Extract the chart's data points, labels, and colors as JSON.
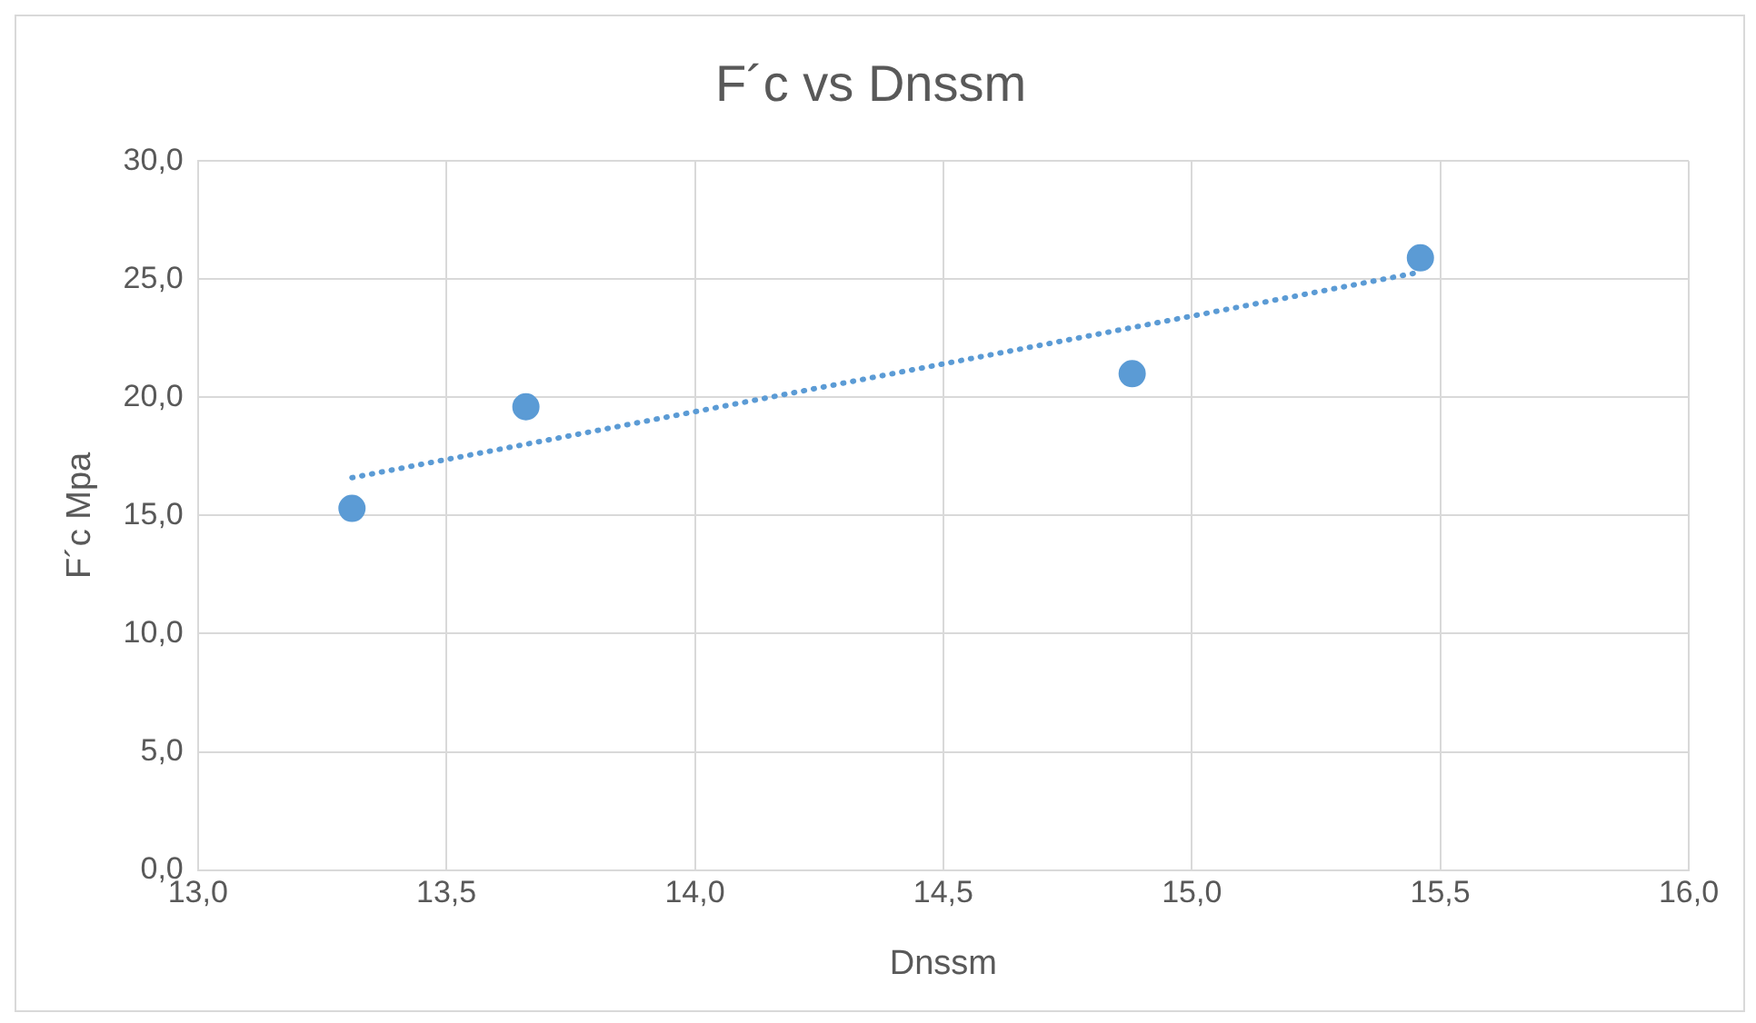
{
  "chart_data": {
    "type": "scatter",
    "title": "F´c vs Dnssm",
    "xlabel": "Dnssm",
    "ylabel": "F´c Mpa",
    "xlim": [
      13,
      16
    ],
    "xticks": [
      {
        "value": 13,
        "label": "13,0"
      },
      {
        "value": 13.5,
        "label": "13,5"
      },
      {
        "value": 14,
        "label": "14,0"
      },
      {
        "value": 14.5,
        "label": "14,5"
      },
      {
        "value": 15,
        "label": "15,0"
      },
      {
        "value": 15.5,
        "label": "15,5"
      },
      {
        "value": 16,
        "label": "16,0"
      }
    ],
    "ylim": [
      0,
      30
    ],
    "yticks": [
      {
        "value": 0,
        "label": "0,0"
      },
      {
        "value": 5,
        "label": "5,0"
      },
      {
        "value": 10,
        "label": "10,0"
      },
      {
        "value": 15,
        "label": "15,0"
      },
      {
        "value": 20,
        "label": "20,0"
      },
      {
        "value": 25,
        "label": "25,0"
      },
      {
        "value": 30,
        "label": "30,0"
      }
    ],
    "grid": true,
    "legend": false,
    "marker": "circle",
    "series": [
      {
        "color": "#5b9bd5",
        "x": [
          13.31,
          13.66,
          14.88,
          15.46
        ],
        "values": [
          15.3,
          19.6,
          21.0,
          25.9
        ]
      },
      {
        "type": "line",
        "color": "#5b9bd5",
        "x": [
          13.31,
          15.46
        ],
        "values": [
          16.6,
          25.3
        ],
        "line_style": "dotted",
        "marker": "none"
      }
    ]
  }
}
